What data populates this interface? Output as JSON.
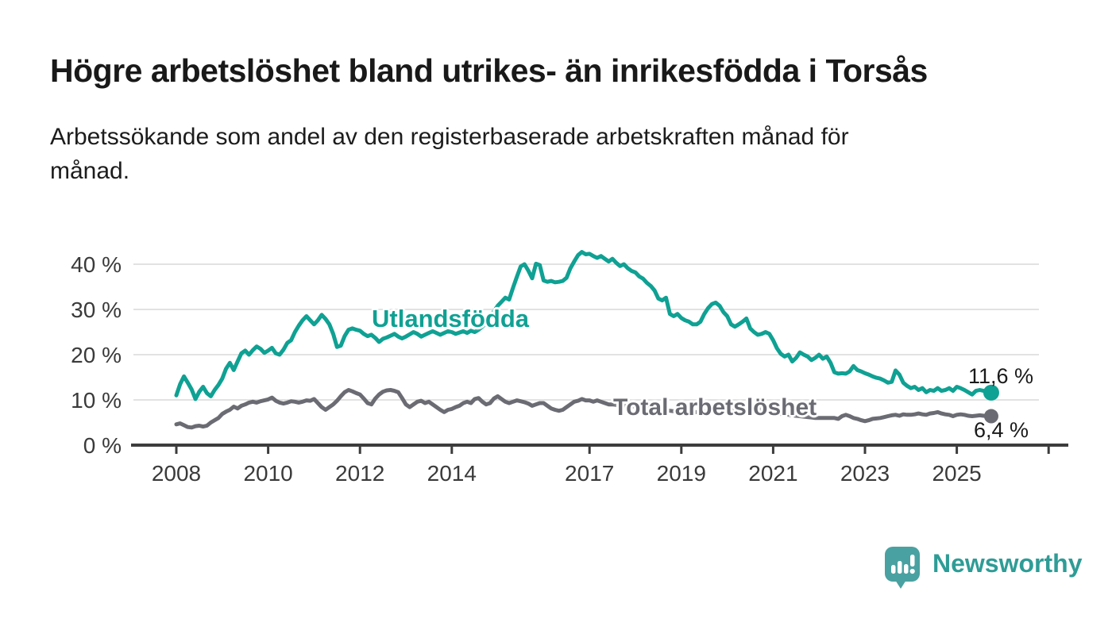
{
  "header": {
    "title": "Högre arbetslöshet bland utrikes- än inrikesfödda i Torsås",
    "subtitle_lines": [
      "Arbetssökande som andel av den registerbaserade arbetskraften månad för",
      "månad."
    ]
  },
  "chart_data": {
    "type": "line",
    "title": "Högre arbetslöshet bland utrikes- än inrikesfödda i Torsås",
    "subtitle": "Arbetssökande som andel av den registerbaserade arbetskraften månad för månad.",
    "xlabel": "",
    "ylabel": "",
    "x_unit": "month",
    "x_start_year": 2008,
    "x_end": "2025-10",
    "ylim": [
      0,
      44
    ],
    "grid": "horizontal",
    "y_ticks": [
      0,
      10,
      20,
      30,
      40
    ],
    "y_tick_suffix": " %",
    "x_ticks": [
      2008,
      2010,
      2012,
      2014,
      2017,
      2019,
      2021,
      2023,
      2025
    ],
    "unlabeled_x_tick": 2027,
    "style": {
      "grid_color": "#d8d8d8",
      "axis_color": "#3c3c3c",
      "axis_text_color": "#3a3a3a"
    },
    "series": [
      {
        "name": "Utlandsfödda",
        "color": "#0fa193",
        "end_label": "11,6 %",
        "end_value": 11.6,
        "dot_radius": 10,
        "values": [
          11.0,
          13.5,
          15.2,
          13.8,
          12.3,
          10.2,
          11.8,
          12.9,
          11.5,
          10.8,
          12.2,
          13.3,
          14.7,
          16.9,
          18.2,
          16.6,
          18.5,
          20.3,
          20.9,
          20.0,
          21.0,
          21.8,
          21.3,
          20.4,
          20.9,
          21.5,
          20.3,
          20.0,
          21.1,
          22.6,
          23.2,
          25.0,
          26.4,
          27.6,
          28.5,
          27.6,
          26.7,
          27.6,
          28.8,
          27.9,
          26.7,
          24.6,
          21.7,
          22.0,
          24.1,
          25.5,
          25.8,
          25.5,
          25.3,
          24.6,
          24.1,
          24.4,
          23.7,
          22.8,
          23.5,
          23.8,
          24.2,
          24.6,
          24.0,
          23.6,
          24.0,
          24.5,
          25.0,
          24.6,
          24.0,
          24.4,
          24.8,
          25.2,
          24.8,
          24.4,
          24.8,
          25.2,
          25.0,
          24.6,
          24.9,
          25.2,
          24.8,
          25.3,
          25.0,
          25.5,
          26.2,
          27.0,
          28.2,
          29.6,
          30.8,
          31.7,
          32.6,
          32.2,
          34.8,
          37.2,
          39.5,
          40.0,
          38.6,
          36.9,
          40.1,
          39.8,
          36.4,
          36.1,
          36.3,
          36.0,
          36.1,
          36.3,
          37.0,
          39.1,
          40.6,
          42.0,
          42.7,
          42.2,
          42.3,
          41.8,
          41.4,
          41.8,
          41.2,
          40.6,
          41.2,
          40.3,
          39.6,
          40.0,
          39.1,
          38.5,
          38.2,
          37.3,
          36.8,
          35.9,
          35.2,
          34.2,
          32.4,
          32.0,
          32.6,
          29.0,
          28.5,
          29.0,
          28.1,
          27.6,
          27.3,
          26.7,
          26.7,
          27.3,
          29.0,
          30.3,
          31.2,
          31.5,
          30.8,
          29.4,
          28.5,
          26.7,
          26.2,
          26.7,
          27.3,
          28.0,
          25.8,
          25.0,
          24.4,
          24.6,
          25.0,
          24.6,
          23.2,
          21.4,
          20.2,
          19.6,
          20.0,
          18.5,
          19.3,
          20.5,
          20.0,
          19.6,
          18.8,
          19.3,
          20.0,
          19.1,
          19.6,
          18.2,
          16.1,
          15.8,
          15.9,
          15.8,
          16.3,
          17.5,
          16.6,
          16.3,
          15.9,
          15.6,
          15.2,
          14.9,
          14.7,
          14.3,
          13.8,
          14.0,
          16.5,
          15.6,
          13.8,
          13.1,
          12.6,
          12.9,
          12.2,
          12.6,
          11.7,
          12.2,
          12.0,
          12.6,
          12.0,
          12.2,
          12.6,
          12.0,
          12.9,
          12.6,
          12.2,
          11.7,
          11.2,
          12.0,
          12.2,
          12.0,
          11.7,
          11.6
        ]
      },
      {
        "name": "Total arbetslöshet",
        "color": "#6b6b74",
        "end_label": "6,4 %",
        "end_value": 6.4,
        "dot_radius": 9,
        "values": [
          4.6,
          4.8,
          4.4,
          4.0,
          3.9,
          4.2,
          4.3,
          4.1,
          4.3,
          5.0,
          5.5,
          6.0,
          6.9,
          7.4,
          7.8,
          8.5,
          8.1,
          8.7,
          9.0,
          9.4,
          9.6,
          9.4,
          9.7,
          9.9,
          10.1,
          10.5,
          9.8,
          9.4,
          9.2,
          9.4,
          9.7,
          9.6,
          9.4,
          9.6,
          9.9,
          9.8,
          10.2,
          9.3,
          8.4,
          7.8,
          8.4,
          9.0,
          9.8,
          10.8,
          11.7,
          12.2,
          11.9,
          11.5,
          11.2,
          10.3,
          9.3,
          9.0,
          10.3,
          11.2,
          11.8,
          12.1,
          12.2,
          12.0,
          11.7,
          10.4,
          9.0,
          8.4,
          9.0,
          9.6,
          9.8,
          9.3,
          9.6,
          9.0,
          8.4,
          7.8,
          7.3,
          7.8,
          8.0,
          8.4,
          8.7,
          9.3,
          9.6,
          9.3,
          10.2,
          10.4,
          9.6,
          9.0,
          9.3,
          10.3,
          10.8,
          10.2,
          9.6,
          9.3,
          9.6,
          9.9,
          9.7,
          9.5,
          9.2,
          8.7,
          9.0,
          9.3,
          9.3,
          8.7,
          8.1,
          7.8,
          7.6,
          7.8,
          8.4,
          9.0,
          9.6,
          9.8,
          10.2,
          9.9,
          9.9,
          9.6,
          9.9,
          9.6,
          9.3,
          9.0,
          9.0,
          8.9,
          8.8,
          8.7,
          8.6,
          8.6,
          8.5,
          8.4,
          8.3,
          8.2,
          8.1,
          8.0,
          7.9,
          7.8,
          7.7,
          7.6,
          7.5,
          7.5,
          7.5,
          7.4,
          7.4,
          7.3,
          7.3,
          7.4,
          7.5,
          7.6,
          7.7,
          7.7,
          7.6,
          7.5,
          7.6,
          7.7,
          7.9,
          8.2,
          8.4,
          8.5,
          8.4,
          8.2,
          8.0,
          7.8,
          7.6,
          7.4,
          7.2,
          7.0,
          6.9,
          6.8,
          6.7,
          6.6,
          6.5,
          6.4,
          6.3,
          6.2,
          6.1,
          6.0,
          6.0,
          6.0,
          6.0,
          6.0,
          6.0,
          5.8,
          6.4,
          6.7,
          6.4,
          6.0,
          5.8,
          5.5,
          5.3,
          5.5,
          5.8,
          5.9,
          6.0,
          6.2,
          6.4,
          6.6,
          6.7,
          6.5,
          6.8,
          6.7,
          6.7,
          6.8,
          7.0,
          6.8,
          6.7,
          7.0,
          7.1,
          7.3,
          7.0,
          6.8,
          6.7,
          6.4,
          6.7,
          6.8,
          6.7,
          6.5,
          6.4,
          6.5,
          6.6,
          6.5,
          6.4,
          6.4
        ]
      }
    ]
  },
  "footer": {
    "brand": "Newsworthy",
    "brand_color": "#2e9c96",
    "logo_color": "#4aa1a1",
    "logo_glyph": "bar-chart-speech-bubble"
  }
}
